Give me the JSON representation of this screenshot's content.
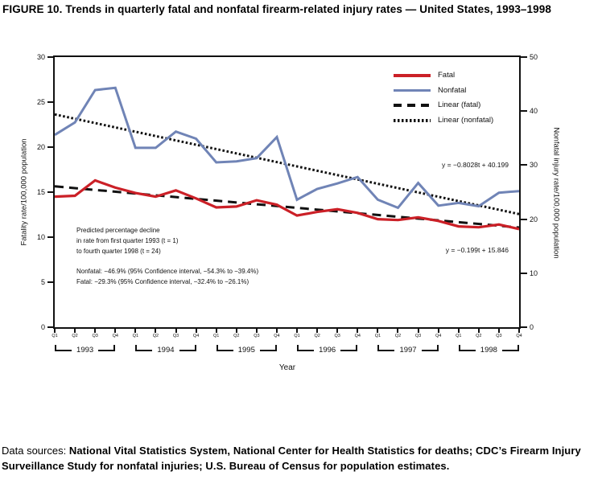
{
  "title": "FIGURE 10. Trends in quarterly fatal and nonfatal firearm-related injury rates — United States, 1993–1998",
  "chart_data": {
    "type": "line",
    "x": {
      "quarter_labels": [
        "Q1",
        "Q2",
        "Q3",
        "Q4"
      ],
      "years": [
        "1993",
        "1994",
        "1995",
        "1996",
        "1997",
        "1998"
      ],
      "t_range": [
        1,
        24
      ],
      "axis_label": "Year"
    },
    "left_axis": {
      "label": "Fatality rate/100,000 population",
      "ticks": [
        0,
        5,
        10,
        15,
        20,
        25,
        30
      ],
      "range": [
        0,
        30
      ]
    },
    "right_axis": {
      "label": "Nonfatal injury rate/100,000 population",
      "ticks": [
        0,
        10,
        20,
        30,
        40,
        50
      ],
      "range": [
        0,
        50
      ]
    },
    "series": [
      {
        "name": "Fatal",
        "axis": "left",
        "style": "solid",
        "color": "#cb2027",
        "values": [
          14.5,
          14.6,
          16.3,
          15.5,
          14.9,
          14.5,
          15.2,
          14.3,
          13.3,
          13.4,
          14.1,
          13.6,
          12.4,
          12.8,
          13.1,
          12.7,
          12.0,
          11.9,
          12.2,
          11.8,
          11.2,
          11.1,
          11.4,
          10.9
        ]
      },
      {
        "name": "Nonfatal",
        "axis": "right",
        "style": "solid",
        "color": "#7084b6",
        "values": [
          35.6,
          37.9,
          43.9,
          44.3,
          33.2,
          33.2,
          36.2,
          34.9,
          30.5,
          30.7,
          31.3,
          35.2,
          23.6,
          25.6,
          26.6,
          27.8,
          23.6,
          22.1,
          26.7,
          22.5,
          23.0,
          22.4,
          24.9,
          25.2
        ]
      },
      {
        "name": "Linear (fatal)",
        "axis": "left",
        "style": "dashed",
        "color": "#111111",
        "slope": -0.199,
        "intercept": 15.846
      },
      {
        "name": "Linear (nonfatal)",
        "axis": "right",
        "style": "dotted",
        "color": "#111111",
        "slope": -0.8028,
        "intercept": 40.199
      }
    ],
    "legend_position": "top-right-inside",
    "grid": false
  },
  "annotations": {
    "equation_nonfatal": "y = −0.8028t + 40.199",
    "equation_fatal": "y = −0.199t + 15.846",
    "note_lines": [
      "Predicted percentage decline",
      "in rate from first quarter 1993 (t = 1)",
      "to fourth quarter 1998 (t = 24)"
    ],
    "note_stats": [
      "Nonfatal: −46.9% (95% Confidence interval, −54.3% to −39.4%)",
      "Fatal: −29.3% (95% Confidence interval, −32.4% to −26.1%)"
    ]
  },
  "footer": {
    "lead": "Data sources:",
    "text": "National Vital Statistics System, National Center for Health Statistics for deaths; CDC’s Firearm Injury Surveillance Study for nonfatal injuries; U.S. Bureau of Census for population estimates."
  }
}
